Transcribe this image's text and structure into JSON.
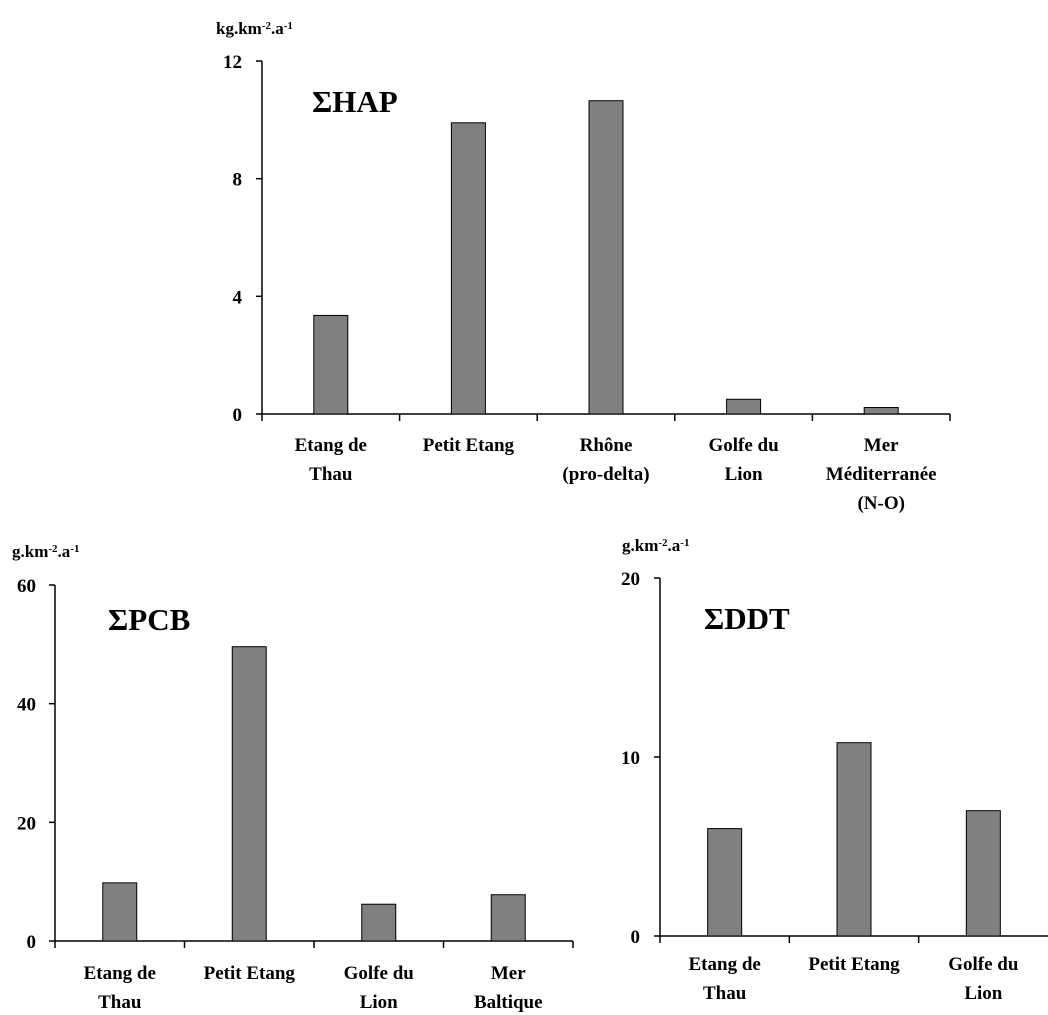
{
  "chart_data": [
    {
      "type": "bar",
      "title": "ΣHAP",
      "unit_label": {
        "base": "kg.km",
        "sup1": "-2",
        "mid": ".a",
        "sup2": "-1"
      },
      "categories": [
        [
          "Etang de",
          "Thau"
        ],
        [
          "Petit Etang"
        ],
        [
          "Rhône",
          "(pro-delta)"
        ],
        [
          "Golfe du",
          "Lion"
        ],
        [
          "Mer",
          "Méditerranée",
          "(N-O)"
        ]
      ],
      "values": [
        3.35,
        9.9,
        10.65,
        0.5,
        0.22
      ],
      "ylim": [
        0,
        12
      ],
      "yticks": [
        0,
        4,
        8,
        12
      ],
      "grid": false,
      "legend": "none"
    },
    {
      "type": "bar",
      "title": "ΣPCB",
      "unit_label": {
        "base": "g.km",
        "sup1": "-2",
        "mid": ".a",
        "sup2": "-1"
      },
      "categories": [
        [
          "Etang de",
          "Thau"
        ],
        [
          "Petit Etang"
        ],
        [
          "Golfe du",
          "Lion"
        ],
        [
          "Mer",
          "Baltique"
        ]
      ],
      "values": [
        9.8,
        49.6,
        6.2,
        7.8
      ],
      "ylim": [
        0,
        60
      ],
      "yticks": [
        0,
        20,
        40,
        60
      ],
      "grid": false,
      "legend": "none"
    },
    {
      "type": "bar",
      "title": "ΣDDT",
      "unit_label": {
        "base": "g.km",
        "sup1": "-2",
        "mid": ".a",
        "sup2": "-1"
      },
      "categories": [
        [
          "Etang de",
          "Thau"
        ],
        [
          "Petit Etang"
        ],
        [
          "Golfe du",
          "Lion"
        ]
      ],
      "values": [
        6.0,
        10.8,
        7.0
      ],
      "ylim": [
        0,
        20
      ],
      "yticks": [
        0,
        10,
        20
      ],
      "grid": false,
      "legend": "none"
    }
  ]
}
